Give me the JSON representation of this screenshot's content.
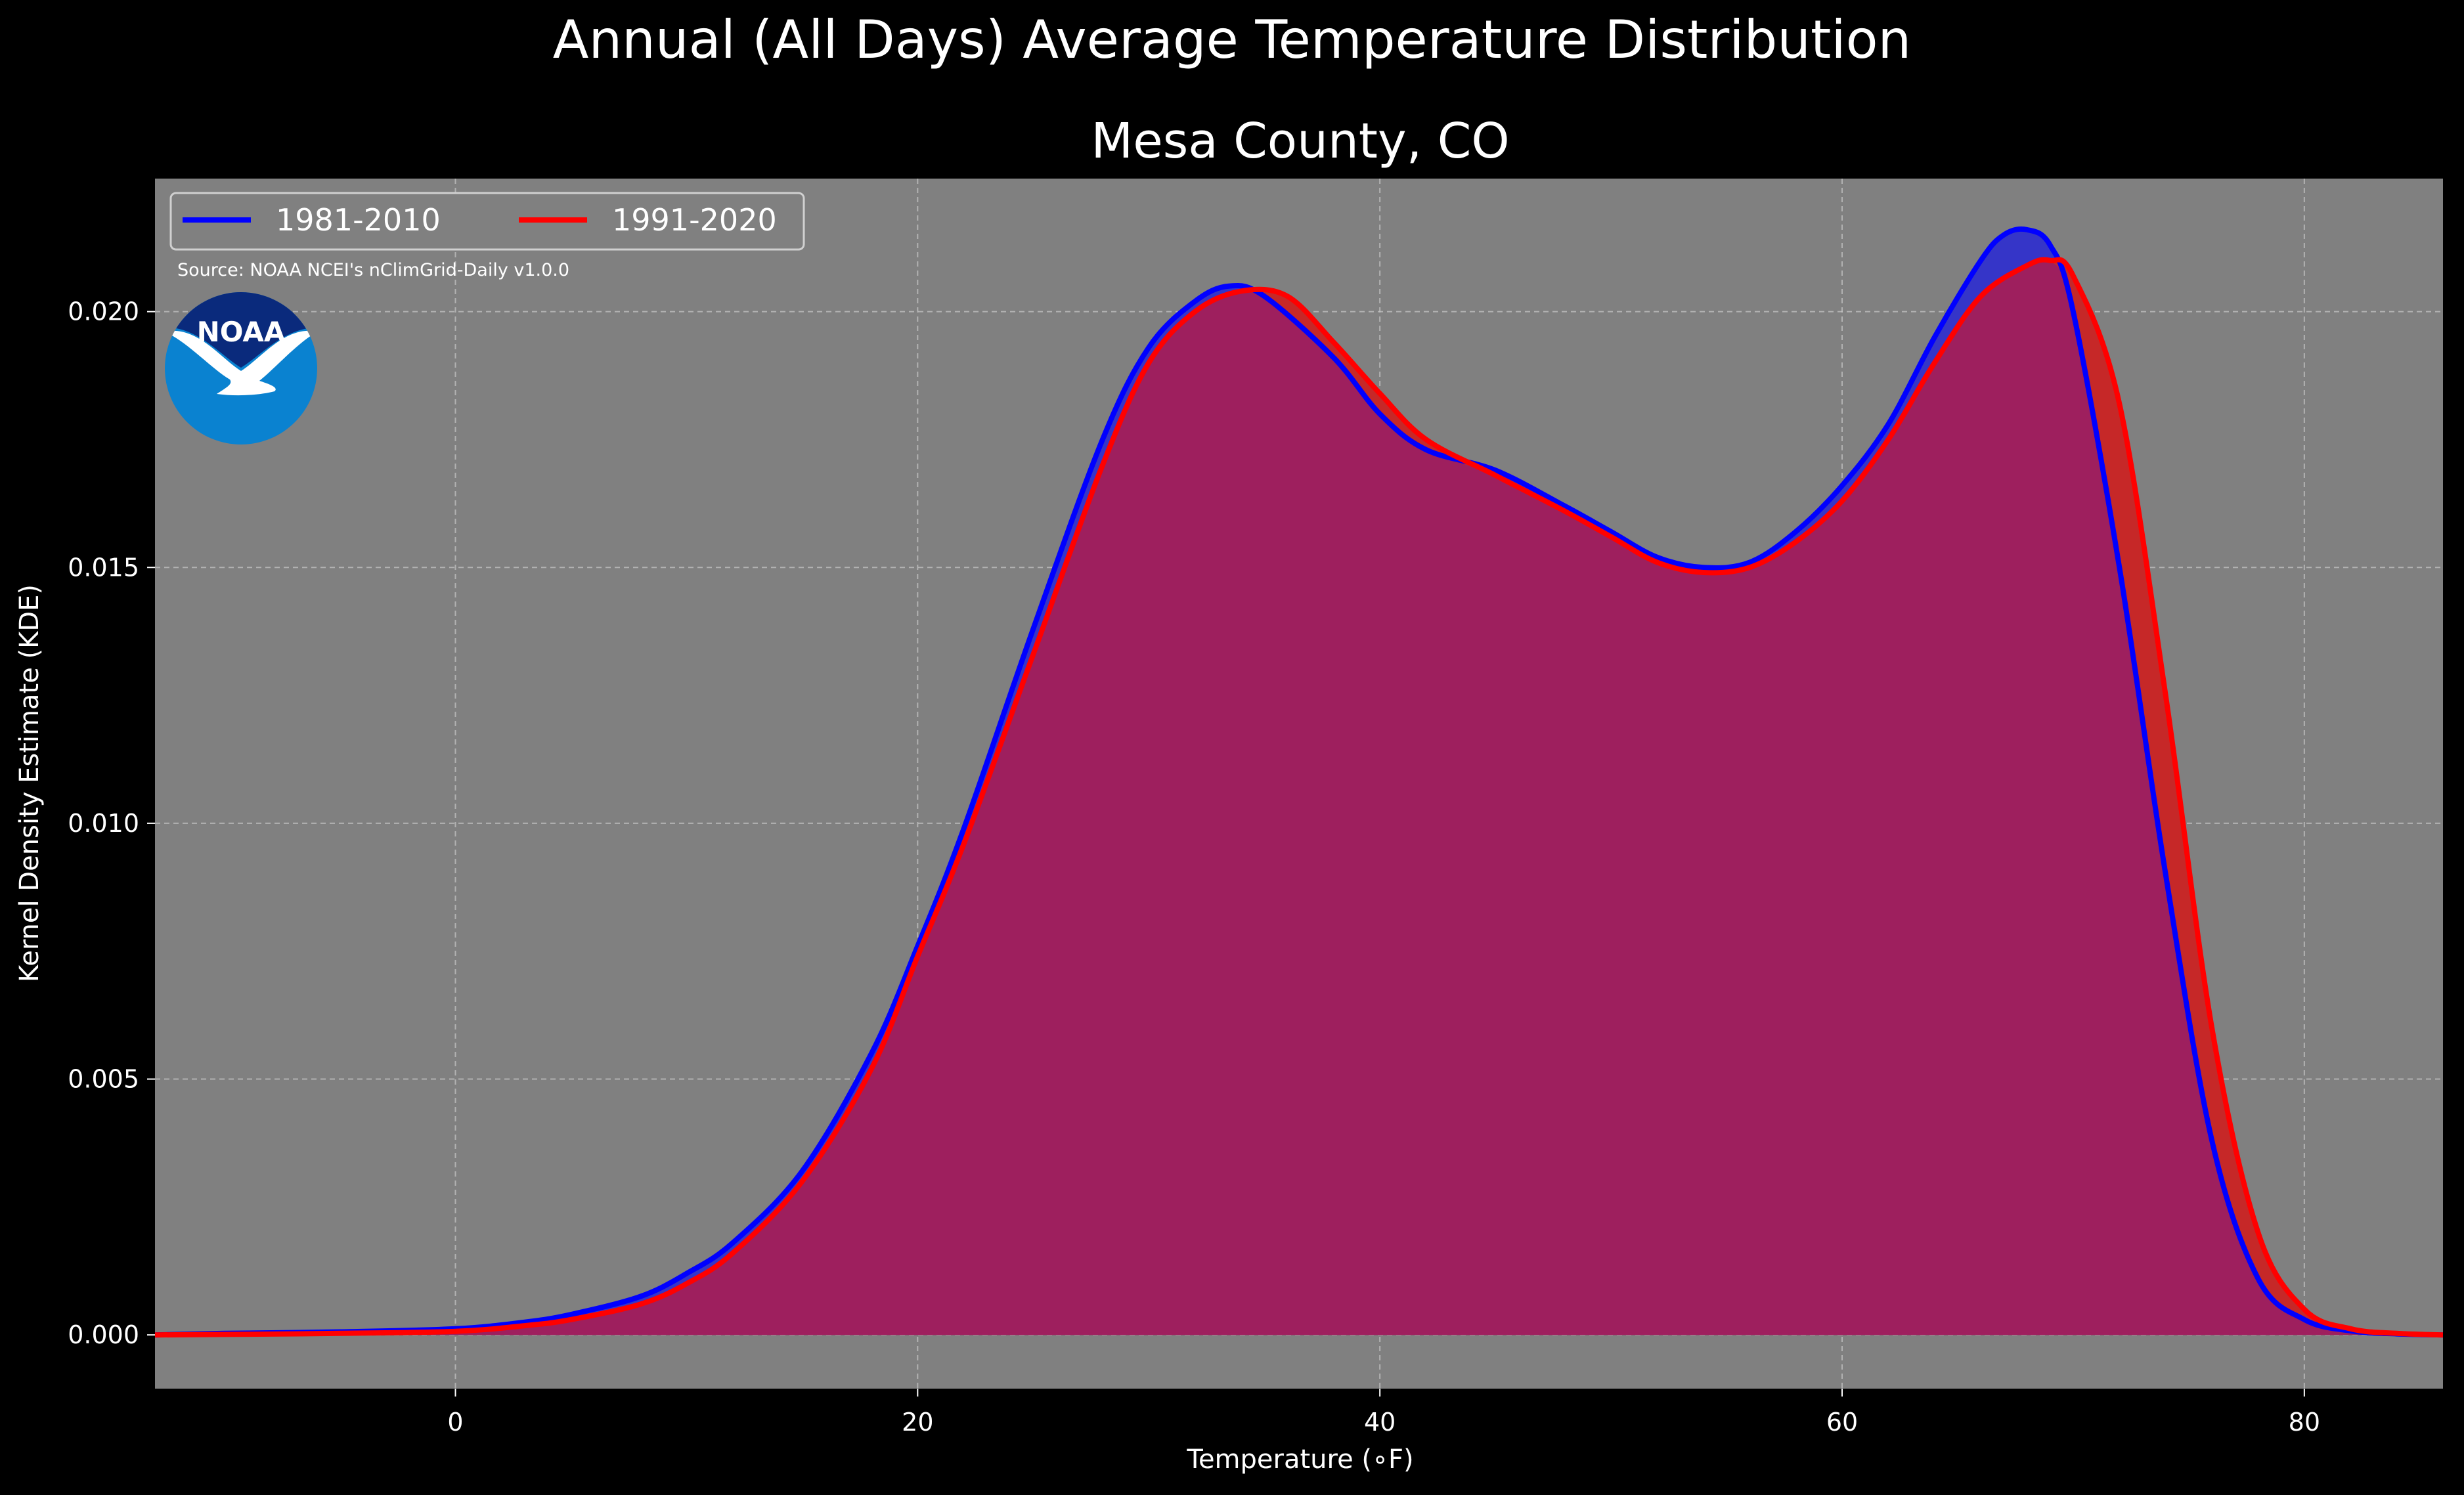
{
  "chart_data": {
    "type": "area",
    "suptitle": "Annual (All Days) Average Temperature Distribution",
    "title": "Mesa County, CO",
    "xlabel": "Temperature (∘F)",
    "ylabel": "Kernel Density Estimate (KDE)",
    "xlim": [
      -13.0,
      86.0
    ],
    "ylim": [
      -0.00105,
      0.0226
    ],
    "xticks": [
      0,
      20,
      40,
      60,
      80
    ],
    "xtick_labels": [
      "0",
      "20",
      "40",
      "60",
      "80"
    ],
    "yticks": [
      0.0,
      0.005,
      0.01,
      0.015,
      0.02
    ],
    "ytick_labels": [
      "0.000",
      "0.005",
      "0.010",
      "0.015",
      "0.020"
    ],
    "grid": true,
    "legend_position": "top-left",
    "source_note": "Source: NOAA NCEI's nClimGrid-Daily v1.0.0",
    "series": [
      {
        "name": "1981-2010",
        "color": "#0000ff",
        "fill": "#3535c8",
        "x": [
          -13,
          -10,
          -5,
          0,
          3,
          5,
          8,
          10,
          12,
          15,
          18,
          20,
          22,
          25,
          28,
          30,
          32,
          33.5,
          35,
          38,
          40,
          42,
          45,
          48,
          50,
          52,
          54,
          56,
          58,
          60,
          62,
          64,
          66,
          67,
          68,
          69,
          70,
          72,
          74,
          76,
          78,
          80,
          82,
          84,
          86
        ],
        "y": [
          0.0,
          3e-05,
          6e-05,
          0.00012,
          0.00025,
          0.0004,
          0.00075,
          0.0012,
          0.0018,
          0.0032,
          0.0055,
          0.0076,
          0.0099,
          0.0138,
          0.0175,
          0.0193,
          0.0202,
          0.0205,
          0.0203,
          0.0191,
          0.018,
          0.0173,
          0.0169,
          0.0162,
          0.0157,
          0.0152,
          0.015,
          0.0151,
          0.0157,
          0.0166,
          0.0178,
          0.0195,
          0.021,
          0.0215,
          0.0216,
          0.0213,
          0.02,
          0.015,
          0.009,
          0.0038,
          0.0011,
          0.0003,
          8e-05,
          2e-05,
          0.0
        ]
      },
      {
        "name": "1991-2020",
        "color": "#ff0000",
        "fill": "#c62828",
        "x": [
          -13,
          -10,
          -5,
          0,
          3,
          5,
          8,
          10,
          12,
          15,
          18,
          20,
          22,
          25,
          28,
          30,
          32,
          34,
          36,
          38,
          40,
          42,
          45,
          48,
          50,
          52,
          54,
          56,
          58,
          60,
          62,
          64,
          66,
          68,
          69,
          70,
          72,
          74,
          76,
          78,
          80,
          82,
          84,
          86
        ],
        "y": [
          0.0,
          1e-05,
          3e-05,
          7e-05,
          0.00018,
          0.0003,
          0.0006,
          0.001,
          0.0016,
          0.003,
          0.0052,
          0.0074,
          0.0096,
          0.0133,
          0.017,
          0.019,
          0.02,
          0.0204,
          0.0203,
          0.0194,
          0.0184,
          0.0175,
          0.0168,
          0.0161,
          0.0156,
          0.0151,
          0.0149,
          0.015,
          0.0155,
          0.0163,
          0.0175,
          0.019,
          0.0203,
          0.0209,
          0.021,
          0.0207,
          0.0182,
          0.0125,
          0.006,
          0.002,
          0.0005,
          0.00012,
          3e-05,
          0.0
        ]
      }
    ]
  },
  "colors": {
    "figure_background": "#000000",
    "plot_background": "#808080",
    "grid": "#c8c8c8",
    "overlap_fill": "#9e1f5e",
    "logo_dark_blue": "#0a2a7c",
    "logo_light_blue": "#0a82d0"
  },
  "logo": {
    "icon": "noaa-logo-icon",
    "text": "NOAA"
  }
}
